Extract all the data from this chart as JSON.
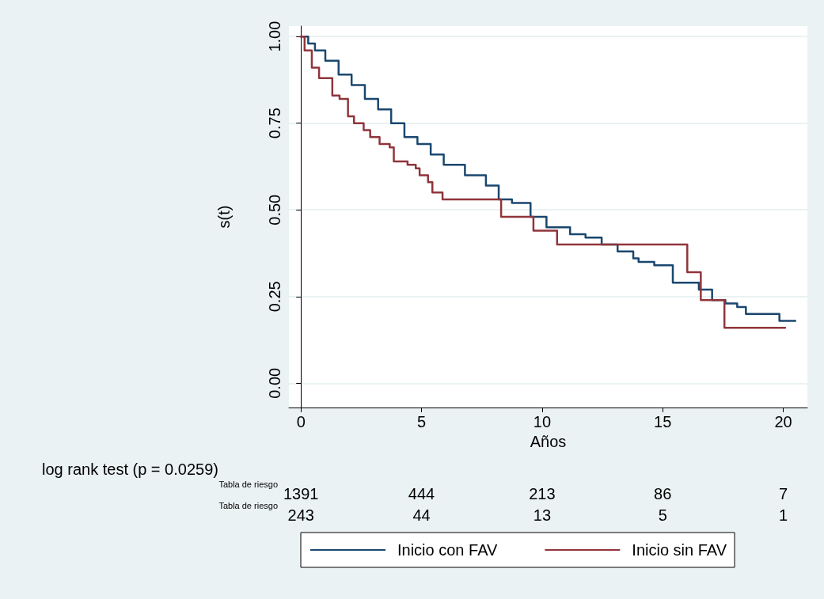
{
  "chart_data": {
    "type": "step",
    "xlabel": "Años",
    "ylabel": "s(t)",
    "xlim": [
      -0.5,
      21
    ],
    "xticks": [
      0,
      5,
      10,
      15,
      20
    ],
    "ylim": [
      -0.07,
      1.03
    ],
    "yticks": [
      {
        "value": 0,
        "label": "0.00"
      },
      {
        "value": 0.25,
        "label": "0.25"
      },
      {
        "value": 0.5,
        "label": "0.50"
      },
      {
        "value": 0.75,
        "label": "0.75"
      },
      {
        "value": 1,
        "label": "1.00"
      }
    ],
    "grid": "y",
    "legend": "bottom",
    "line_style": "solid",
    "marker": "none",
    "series": [
      {
        "name": "Inicio con FAV",
        "color": "#1a476f",
        "x": [
          0,
          0.3,
          0.58,
          1.01,
          1.56,
          2.1,
          2.65,
          3.2,
          3.74,
          4.29,
          4.83,
          5.38,
          5.92,
          6.8,
          7.67,
          8.2,
          8.75,
          9.52,
          10.18,
          11.16,
          11.8,
          12.25,
          12.47,
          13.13,
          13.78,
          14.0,
          14.65,
          15.42,
          15.96,
          16.5,
          17.05,
          17.6,
          18.09,
          18.45,
          19.84,
          20.5
        ],
        "values": [
          1.0,
          0.98,
          0.96,
          0.93,
          0.89,
          0.86,
          0.82,
          0.79,
          0.75,
          0.71,
          0.69,
          0.66,
          0.63,
          0.6,
          0.57,
          0.53,
          0.52,
          0.48,
          0.45,
          0.43,
          0.42,
          0.42,
          0.4,
          0.38,
          0.36,
          0.35,
          0.34,
          0.29,
          0.29,
          0.27,
          0.24,
          0.23,
          0.22,
          0.2,
          0.18,
          0.18
        ]
      },
      {
        "name": "Inicio sin FAV",
        "color": "#90353b",
        "x": [
          0,
          0.15,
          0.45,
          0.75,
          1.3,
          1.6,
          1.95,
          2.2,
          2.6,
          2.87,
          3.26,
          3.68,
          3.85,
          4.42,
          4.76,
          4.92,
          5.27,
          5.45,
          5.87,
          8.3,
          9.64,
          10.62,
          16.02,
          16.58,
          17.56,
          20.08
        ],
        "values": [
          1.0,
          0.96,
          0.91,
          0.88,
          0.83,
          0.82,
          0.77,
          0.75,
          0.73,
          0.71,
          0.69,
          0.68,
          0.64,
          0.63,
          0.62,
          0.6,
          0.58,
          0.55,
          0.53,
          0.48,
          0.44,
          0.4,
          0.32,
          0.24,
          0.16,
          0.16
        ]
      }
    ],
    "annotations": [
      "log rank test (p = 0.0259)",
      "Tabla de riesgo",
      "1391",
      "444",
      "213",
      "86",
      "7",
      "Tabla de riesgo",
      "243",
      "44",
      "13",
      "5",
      "1"
    ]
  }
}
